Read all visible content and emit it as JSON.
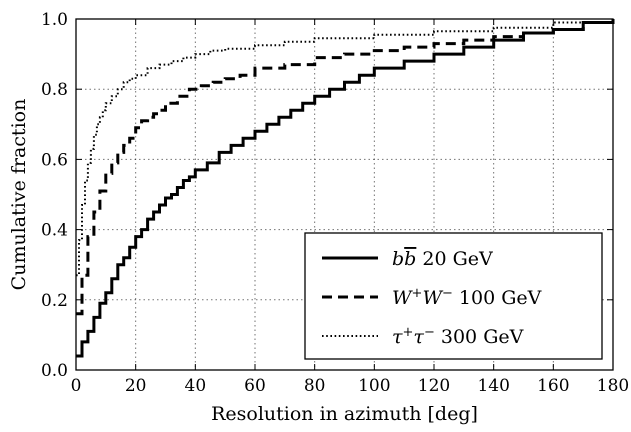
{
  "chart_data": {
    "type": "line",
    "step": true,
    "xlabel": "Resolution in azimuth [deg]",
    "ylabel": "Cumulative fraction",
    "xlim": [
      0,
      180
    ],
    "ylim": [
      0.0,
      1.0
    ],
    "x_ticks": [
      "0",
      "20",
      "40",
      "60",
      "80",
      "100",
      "120",
      "140",
      "160",
      "180"
    ],
    "y_ticks": [
      "0.0",
      "0.2",
      "0.4",
      "0.6",
      "0.8",
      "1.0"
    ],
    "grid": true,
    "legend_position": "bottom-right",
    "series": [
      {
        "name": "b b̄ 20 GeV",
        "name_base": "b",
        "name_overbar": "b",
        "name_suffix": " 20 GeV",
        "style": "solid",
        "x": [
          0,
          2,
          4,
          6,
          8,
          10,
          12,
          14,
          16,
          18,
          20,
          22,
          24,
          26,
          28,
          30,
          32,
          34,
          36,
          38,
          40,
          44,
          48,
          52,
          56,
          60,
          64,
          68,
          72,
          76,
          80,
          85,
          90,
          95,
          100,
          110,
          120,
          130,
          140,
          150,
          160,
          170,
          180
        ],
        "y": [
          0.04,
          0.08,
          0.11,
          0.15,
          0.19,
          0.22,
          0.26,
          0.3,
          0.32,
          0.35,
          0.38,
          0.4,
          0.43,
          0.45,
          0.47,
          0.49,
          0.5,
          0.52,
          0.54,
          0.55,
          0.57,
          0.59,
          0.62,
          0.64,
          0.66,
          0.68,
          0.7,
          0.72,
          0.74,
          0.76,
          0.78,
          0.8,
          0.82,
          0.84,
          0.86,
          0.88,
          0.9,
          0.92,
          0.94,
          0.96,
          0.97,
          0.99,
          1.0
        ]
      },
      {
        "name": "W⁺W⁻ 100 GeV",
        "name_base": "W",
        "name_sup1": "+",
        "name_mid": "W",
        "name_sup2": "−",
        "name_suffix": " 100 GeV",
        "style": "dashed",
        "x": [
          0,
          2,
          4,
          6,
          8,
          10,
          12,
          14,
          16,
          18,
          20,
          22,
          24,
          26,
          28,
          30,
          34,
          38,
          42,
          46,
          50,
          55,
          60,
          70,
          80,
          90,
          100,
          110,
          120,
          130,
          140,
          150,
          160,
          170,
          180
        ],
        "y": [
          0.16,
          0.27,
          0.38,
          0.45,
          0.51,
          0.56,
          0.59,
          0.62,
          0.64,
          0.66,
          0.69,
          0.71,
          0.72,
          0.73,
          0.74,
          0.76,
          0.78,
          0.8,
          0.81,
          0.82,
          0.83,
          0.84,
          0.86,
          0.87,
          0.89,
          0.9,
          0.91,
          0.92,
          0.93,
          0.94,
          0.95,
          0.96,
          0.97,
          0.99,
          1.0
        ]
      },
      {
        "name": "τ⁺τ⁻ 300 GeV",
        "name_base": "τ",
        "name_sup1": "+",
        "name_mid": "τ",
        "name_sup2": "−",
        "name_suffix": " 300 GeV",
        "style": "dotted",
        "x": [
          0,
          1,
          2,
          3,
          4,
          5,
          6,
          7,
          8,
          9,
          10,
          12,
          14,
          16,
          18,
          20,
          24,
          28,
          32,
          36,
          40,
          45,
          50,
          60,
          70,
          80,
          100,
          120,
          140,
          160,
          180
        ],
        "y": [
          0.27,
          0.37,
          0.47,
          0.54,
          0.59,
          0.63,
          0.67,
          0.7,
          0.72,
          0.74,
          0.76,
          0.78,
          0.8,
          0.82,
          0.83,
          0.84,
          0.86,
          0.87,
          0.88,
          0.89,
          0.9,
          0.91,
          0.915,
          0.925,
          0.935,
          0.945,
          0.955,
          0.965,
          0.975,
          0.99,
          1.0
        ]
      }
    ]
  }
}
